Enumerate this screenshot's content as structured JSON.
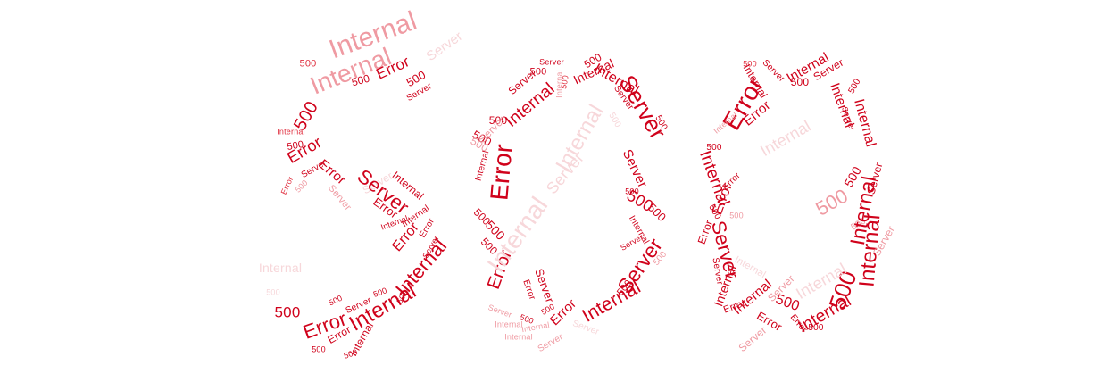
{
  "illustration": {
    "terms": [
      "500",
      "Internal",
      "Server",
      "Error"
    ],
    "colors": {
      "dark": "#d0021b",
      "medium": "#e03040",
      "light": "#ef9aa2",
      "faint": "#f7d7da",
      "background": "#ffffff"
    }
  }
}
